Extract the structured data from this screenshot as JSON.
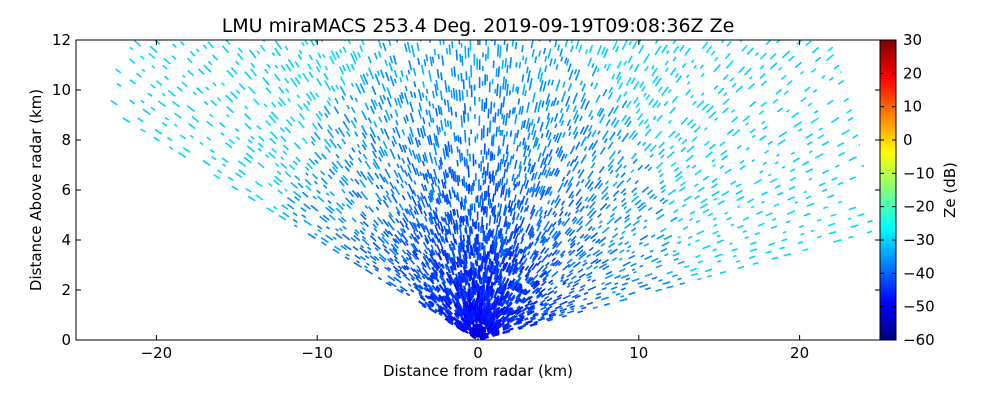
{
  "chart_data": {
    "type": "heatmap",
    "title": "LMU miraMACS 253.4 Deg. 2019-09-19T09:08:36Z  Ze",
    "xlabel": "Distance from radar (km)",
    "ylabel": "Distance Above radar  (km)",
    "xlim": [
      -25,
      25
    ],
    "ylim": [
      0,
      12
    ],
    "xticks": [
      "−20",
      "−10",
      "0",
      "10",
      "20"
    ],
    "xtick_values": [
      -20,
      -10,
      0,
      10,
      20
    ],
    "yticks": [
      "0",
      "2",
      "4",
      "6",
      "8",
      "10",
      "12"
    ],
    "ytick_values": [
      0,
      2,
      4,
      6,
      8,
      10,
      12
    ],
    "grid": false,
    "scan": {
      "max_range_km": 25,
      "elevation_min_deg": 10,
      "elevation_max_deg": 158,
      "ze_near_db": -52,
      "ze_far_db": -30
    },
    "colorbar": {
      "label": "Ze (dB)",
      "range": [
        -60,
        30
      ],
      "ticks": [
        "30",
        "20",
        "10",
        "0",
        "−10",
        "−20",
        "−30",
        "−40",
        "−50",
        "−60"
      ],
      "tick_values": [
        30,
        20,
        10,
        0,
        -10,
        -20,
        -30,
        -40,
        -50,
        -60
      ],
      "colormap": "jet",
      "colors": [
        "#00007f",
        "#0000ff",
        "#007fff",
        "#00ffff",
        "#7fff7f",
        "#ffff00",
        "#ff7f00",
        "#ff0000",
        "#7f0000"
      ]
    }
  }
}
